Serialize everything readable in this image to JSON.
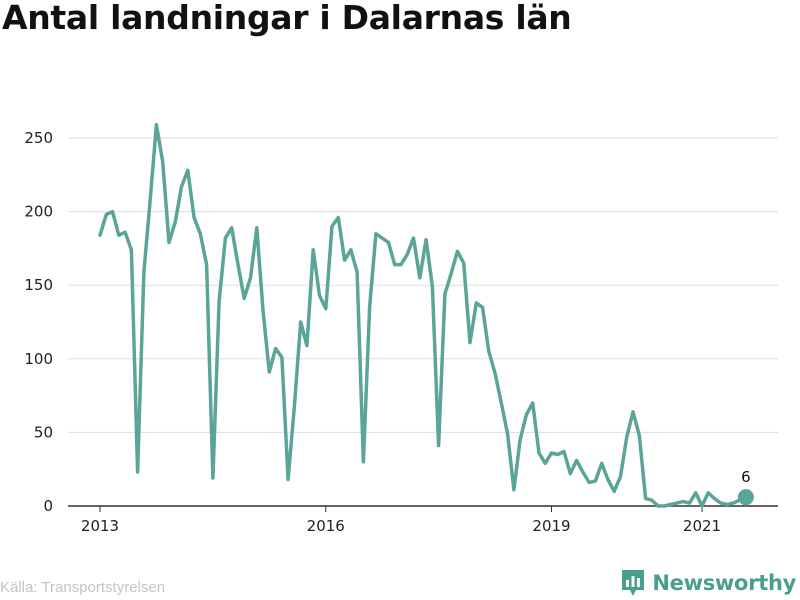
{
  "title": "Antal landningar i Dalarnas län",
  "source": "Källa: Transportstyrelsen",
  "brand": {
    "name": "Newsworthy",
    "icon": "newsworthy-logo-icon",
    "color": "#4a9e8e"
  },
  "chart_data": {
    "type": "line",
    "title": "Antal landningar i Dalarnas län",
    "xlabel": "",
    "ylabel": "",
    "x_ticks": [
      "2013",
      "2016",
      "2019",
      "2021"
    ],
    "y_ticks": [
      0,
      50,
      100,
      150,
      200,
      250
    ],
    "ylim": [
      0,
      260
    ],
    "xlim": [
      "2012-10",
      "2022-03"
    ],
    "grid": "horizontal",
    "line_color": "#5aa597",
    "series": [
      {
        "x": [
          "2013-01",
          "2013-02",
          "2013-03",
          "2013-04",
          "2013-05",
          "2013-06",
          "2013-07",
          "2013-08",
          "2013-09",
          "2013-10",
          "2013-11",
          "2013-12",
          "2014-01",
          "2014-02",
          "2014-03",
          "2014-04",
          "2014-05",
          "2014-06",
          "2014-07",
          "2014-08",
          "2014-09",
          "2014-10",
          "2014-11",
          "2014-12",
          "2015-01",
          "2015-02",
          "2015-03",
          "2015-04",
          "2015-05",
          "2015-06",
          "2015-07",
          "2015-08",
          "2015-09",
          "2015-10",
          "2015-11",
          "2015-12",
          "2016-01",
          "2016-02",
          "2016-03",
          "2016-04",
          "2016-05",
          "2016-06",
          "2016-07",
          "2016-08",
          "2016-09",
          "2016-10",
          "2016-11",
          "2016-12",
          "2017-01",
          "2017-02",
          "2017-03",
          "2017-04",
          "2017-05",
          "2017-06",
          "2017-07",
          "2017-08",
          "2017-09",
          "2017-10",
          "2017-11",
          "2017-12",
          "2018-01",
          "2018-02",
          "2018-03",
          "2018-04",
          "2018-05",
          "2018-06",
          "2018-07",
          "2018-08",
          "2018-09",
          "2018-10",
          "2018-11",
          "2018-12",
          "2019-01",
          "2019-02",
          "2019-03",
          "2019-04",
          "2019-05",
          "2019-06",
          "2019-07",
          "2019-08",
          "2019-09",
          "2019-10",
          "2019-11",
          "2019-12",
          "2020-01",
          "2020-02",
          "2020-03",
          "2020-04",
          "2020-05",
          "2020-06",
          "2020-07",
          "2020-08",
          "2020-09",
          "2020-10",
          "2020-11",
          "2020-12",
          "2021-01",
          "2021-02",
          "2021-03",
          "2021-04",
          "2021-05",
          "2021-06",
          "2021-07",
          "2021-08"
        ],
        "values": [
          184,
          198,
          200,
          184,
          186,
          174,
          23,
          159,
          208,
          259,
          234,
          179,
          193,
          217,
          228,
          196,
          185,
          164,
          19,
          139,
          182,
          189,
          164,
          141,
          155,
          189,
          133,
          91,
          107,
          101,
          18,
          68,
          125,
          109,
          174,
          143,
          134,
          190,
          196,
          167,
          174,
          159,
          30,
          135,
          185,
          182,
          179,
          164,
          164,
          171,
          182,
          155,
          181,
          149,
          41,
          144,
          158,
          173,
          165,
          111,
          138,
          135,
          105,
          90,
          70,
          49,
          11,
          45,
          62,
          70,
          36,
          29,
          36,
          35,
          37,
          22,
          31,
          23,
          16,
          17,
          29,
          18,
          10,
          20,
          47,
          64,
          48,
          5,
          4,
          0,
          0,
          1,
          2,
          3,
          2,
          9,
          0,
          9,
          5,
          2,
          1,
          2,
          4,
          6
        ]
      }
    ],
    "annotations": [
      {
        "x": "2021-08",
        "value": 6,
        "text": "6"
      }
    ]
  }
}
